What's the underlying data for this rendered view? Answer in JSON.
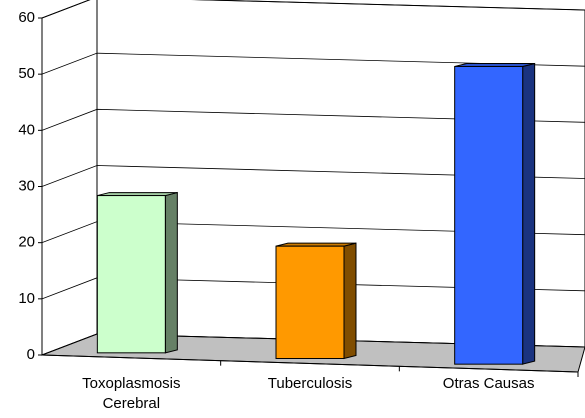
{
  "chart_data": {
    "type": "bar3d",
    "categories": [
      "Toxoplasmosis Cerebral",
      "Tuberculosis",
      "Otras Causas"
    ],
    "values": [
      28,
      20,
      53
    ],
    "colors": [
      "#ccffcc",
      "#ff9900",
      "#3366ff"
    ],
    "ylim": [
      0,
      60
    ],
    "yticks": [
      0,
      10,
      20,
      30,
      40,
      50,
      60
    ],
    "grid": true
  }
}
